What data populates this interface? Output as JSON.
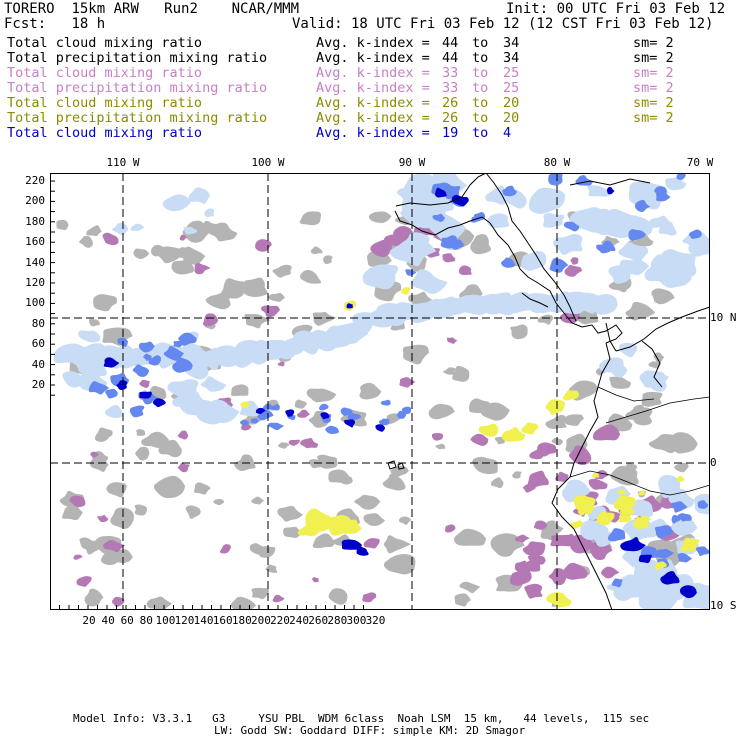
{
  "header": {
    "model": "TORERO",
    "grid": "15km ARW",
    "run": "Run2",
    "org": "NCAR/MMM",
    "init": "Init: 00 UTC Fri 03 Feb 12",
    "fcst_label": "Fcst:",
    "fcst_value": "18 h",
    "valid": "Valid: 18 UTC Fri 03 Feb 12 (12 CST Fri 03 Feb 12)"
  },
  "legend": [
    {
      "name": "Total cloud mixing ratio",
      "kidx": "Avg. k-index =",
      "a": "44",
      "to": "to",
      "b": "34",
      "sm": "sm= 2",
      "color": "#000000"
    },
    {
      "name": "Total precipitation mixing ratio",
      "kidx": "Avg. k-index =",
      "a": "44",
      "to": "to",
      "b": "34",
      "sm": "sm= 2",
      "color": "#000000"
    },
    {
      "name": "Total cloud mixing ratio",
      "kidx": "Avg. k-index =",
      "a": "33",
      "to": "to",
      "b": "25",
      "sm": "sm= 2",
      "color": "#c87fc8"
    },
    {
      "name": "Total precipitation mixing ratio",
      "kidx": "Avg. k-index =",
      "a": "33",
      "to": "to",
      "b": "25",
      "sm": "sm= 2",
      "color": "#c87fc8"
    },
    {
      "name": "Total cloud mixing ratio",
      "kidx": "Avg. k-index =",
      "a": "26",
      "to": "to",
      "b": "20",
      "sm": "sm= 2",
      "color": "#8c8c00"
    },
    {
      "name": "Total precipitation mixing ratio",
      "kidx": "Avg. k-index =",
      "a": "26",
      "to": "to",
      "b": "20",
      "sm": "sm= 2",
      "color": "#8c8c00"
    },
    {
      "name": "Total cloud mixing ratio",
      "kidx": "Avg. k-index =",
      "a": "19",
      "to": "to",
      "b": "4",
      "sm": "",
      "color": "#0000c8"
    }
  ],
  "map": {
    "lon_labels": [
      "110 W",
      "100 W",
      "90 W",
      "80 W",
      "70 W"
    ],
    "lat_labels": [
      "10 N",
      "0",
      "10 S"
    ],
    "y_ticks": [
      "220",
      "200",
      "180",
      "160",
      "140",
      "120",
      "100",
      "80",
      "60",
      "40",
      "20"
    ],
    "x_ticks": [
      "20",
      "40",
      "60",
      "80",
      "100",
      "120",
      "140",
      "160",
      "180",
      "200",
      "220",
      "240",
      "260",
      "280",
      "300",
      "320"
    ],
    "colors": {
      "gray": "#b4b4b4",
      "purple": "#b478b4",
      "yellow": "#f0f050",
      "light_blue": "#c8dcf5",
      "mid_blue": "#6487f0",
      "dark_blue": "#0000c8"
    }
  },
  "footer": {
    "line1": "Model Info: V3.3.1   G3     YSU PBL  WDM 6class  Noah LSM  15 km,   44 levels,  115 sec",
    "line2": "LW: Godd SW: Goddard DIFF: simple KM: 2D Smagor"
  }
}
